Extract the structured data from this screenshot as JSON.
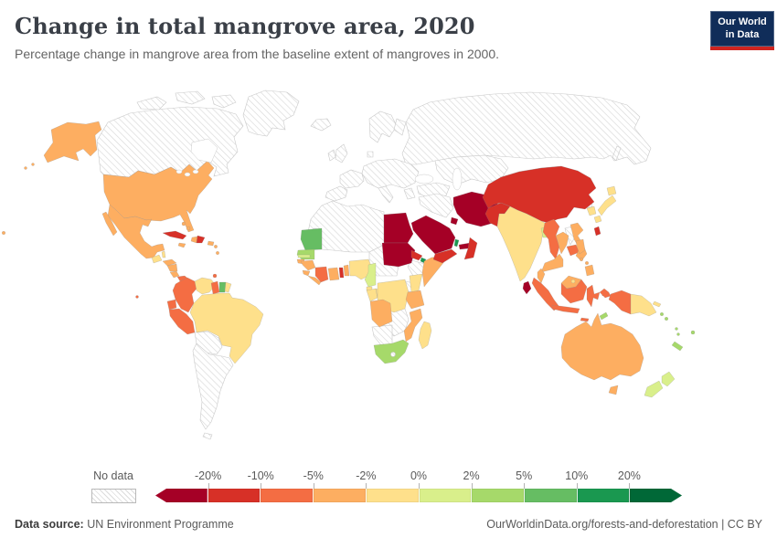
{
  "header": {
    "title": "Change in total mangrove area, 2020",
    "subtitle": "Percentage change in mangrove area from the baseline extent of mangroves in 2000.",
    "logo_line1": "Our World",
    "logo_line2": "in Data"
  },
  "legend": {
    "no_data_label": "No data",
    "tick_labels": [
      "-20%",
      "-10%",
      "-5%",
      "-2%",
      "0%",
      "2%",
      "5%",
      "10%",
      "20%"
    ],
    "bin_colors": [
      "#a50026",
      "#d73027",
      "#f46d43",
      "#fdae61",
      "#fee08b",
      "#d9ef8b",
      "#a6d96a",
      "#66bd63",
      "#1a9850",
      "#006837"
    ]
  },
  "footer": {
    "source_label": "Data source:",
    "source_value": "UN Environment Programme",
    "attribution": "OurWorldinData.org/forests-and-deforestation | CC BY"
  },
  "chart_data": {
    "type": "choropleth",
    "title": "Change in total mangrove area, 2020",
    "unit": "% change in mangrove area since 2000",
    "bin_labels": [
      "< -20%",
      "-20% to -10%",
      "-10% to -5%",
      "-5% to -2%",
      "-2% to 0%",
      "0% to 2%",
      "2% to 5%",
      "5% to 10%",
      "10% to 20%",
      "> 20%"
    ],
    "no_data_regions": [
      "Canada",
      "Greenland",
      "Iceland",
      "Europe",
      "Russia",
      "Central Asia",
      "Mongolia",
      "North Korea",
      "Turkey",
      "Iraq",
      "Afghanistan",
      "Nepal",
      "Laos",
      "North Africa",
      "Sahel",
      "Chad",
      "Ethiopia",
      "Uganda",
      "Zambia",
      "Namibia",
      "Lesotho",
      "Bolivia",
      "Chile",
      "Argentina"
    ],
    "countries": {
      "United States": 3,
      "Mexico": 3,
      "Guatemala": 4,
      "Belize": 4,
      "Honduras": 3,
      "Nicaragua": 3,
      "Costa Rica": 3,
      "Panama": 2,
      "Cuba": 1,
      "Jamaica": 3,
      "Haiti": 3,
      "Dominican Republic": 1,
      "Puerto Rico": 3,
      "Bahamas": 3,
      "Lesser Antilles": 3,
      "Trinidad and Tobago": 2,
      "Colombia": 2,
      "Venezuela": 4,
      "Guyana": 2,
      "Suriname": 7,
      "French Guiana": 4,
      "Ecuador": 2,
      "Peru": 2,
      "Brazil": 4,
      "Mauritania": 7,
      "Senegal": 6,
      "Gambia": 5,
      "Guinea-Bissau": 3,
      "Guinea": 3,
      "Sierra Leone": 3,
      "Liberia": 3,
      "Cote d'Ivoire": 2,
      "Ghana": 3,
      "Togo": 1,
      "Benin": 3,
      "Nigeria": 4,
      "Cameroon": 5,
      "Equatorial Guinea": 4,
      "Gabon": 4,
      "Republic of the Congo": 4,
      "Democratic Republic of Congo": 4,
      "Angola": 3,
      "South Africa": 6,
      "Mozambique": 3,
      "Tanzania": 3,
      "Kenya": 4,
      "Somalia": 3,
      "Madagascar": 4,
      "Egypt": 0,
      "Sudan": 0,
      "Eritrea": 1,
      "Djibouti": 8,
      "Saudi Arabia": 0,
      "Kuwait": 0,
      "Qatar": 8,
      "United Arab Emirates": 0,
      "Oman": 1,
      "Yemen": 1,
      "Iran": 0,
      "Pakistan": 1,
      "India": 4,
      "Sri Lanka": 0,
      "Bangladesh": 5,
      "Myanmar": 2,
      "Thailand": 3,
      "Cambodia": 2,
      "Vietnam": 3,
      "China": 1,
      "Taiwan": 1,
      "South Korea": 4,
      "Japan": 4,
      "Malaysia": 3,
      "Indonesia": 2,
      "Brunei": 4,
      "Philippines": 3,
      "Timor-Leste": 6,
      "Papua New Guinea": 4,
      "Australia": 3,
      "New Zealand": 5,
      "Fiji": 6,
      "Solomon Islands": 6,
      "Vanuatu": 6,
      "New Caledonia": 6
    }
  }
}
